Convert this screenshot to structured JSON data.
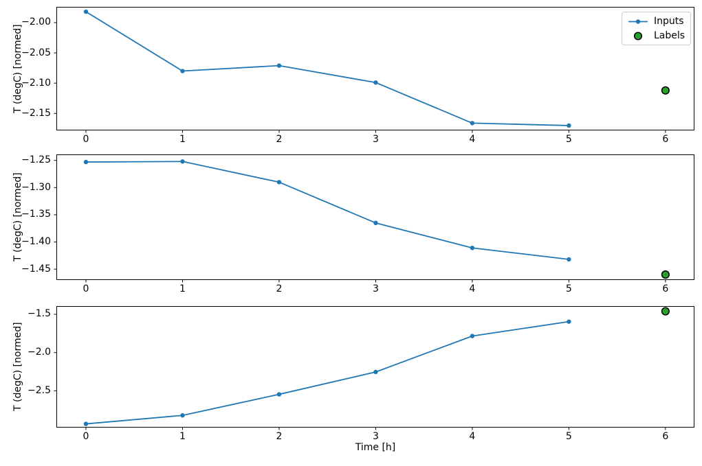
{
  "figure": {
    "xlabel": "Time [h]",
    "background_color": "#ffffff",
    "frame_color": "#000000",
    "legend": {
      "position": "upper right",
      "items": [
        {
          "label": "Inputs",
          "glyph": "line-with-dot-marker",
          "color": "#1f77b4"
        },
        {
          "label": "Labels",
          "glyph": "filled-circle",
          "color": "#2ca02c",
          "edge_color": "#000000"
        }
      ]
    }
  },
  "chart_data": [
    {
      "type": "line",
      "title": "",
      "xlabel": "",
      "ylabel": "T (degC) [normed]",
      "grid": false,
      "xlim": [
        -0.306,
        6.3
      ],
      "ylim": [
        -2.178,
        -1.974
      ],
      "xticks": {
        "values": [
          0,
          1,
          2,
          3,
          4,
          5,
          6
        ],
        "labels": [
          "0",
          "1",
          "2",
          "3",
          "4",
          "5",
          "6"
        ]
      },
      "yticks": {
        "values": [
          -2.0,
          -2.05,
          -2.1,
          -2.15
        ],
        "labels": [
          "−2.00",
          "−2.05",
          "−2.10",
          "−2.15"
        ]
      },
      "series": [
        {
          "name": "Inputs",
          "type": "line",
          "color": "#1f77b4",
          "x": [
            0,
            1,
            2,
            3,
            4,
            5
          ],
          "values": [
            -1.982,
            -2.08,
            -2.071,
            -2.099,
            -2.166,
            -2.17
          ]
        },
        {
          "name": "Labels",
          "type": "scatter",
          "color": "#2ca02c",
          "edge_color": "#000000",
          "x": [
            6
          ],
          "values": [
            -2.112
          ]
        }
      ]
    },
    {
      "type": "line",
      "title": "",
      "xlabel": "",
      "ylabel": "T (degC) [normed]",
      "grid": false,
      "xlim": [
        -0.306,
        6.3
      ],
      "ylim": [
        -1.47,
        -1.239
      ],
      "xticks": {
        "values": [
          0,
          1,
          2,
          3,
          4,
          5,
          6
        ],
        "labels": [
          "0",
          "1",
          "2",
          "3",
          "4",
          "5",
          "6"
        ]
      },
      "yticks": {
        "values": [
          -1.25,
          -1.3,
          -1.35,
          -1.4,
          -1.45
        ],
        "labels": [
          "−1.25",
          "−1.30",
          "−1.35",
          "−1.40",
          "−1.45"
        ]
      },
      "series": [
        {
          "name": "Inputs",
          "type": "line",
          "color": "#1f77b4",
          "x": [
            0,
            1,
            2,
            3,
            4,
            5
          ],
          "values": [
            -1.253,
            -1.252,
            -1.29,
            -1.365,
            -1.411,
            -1.432
          ]
        },
        {
          "name": "Labels",
          "type": "scatter",
          "color": "#2ca02c",
          "edge_color": "#000000",
          "x": [
            6
          ],
          "values": [
            -1.46
          ]
        }
      ]
    },
    {
      "type": "line",
      "title": "",
      "xlabel": "Time [h]",
      "ylabel": "T (degC) [normed]",
      "grid": false,
      "xlim": [
        -0.306,
        6.3
      ],
      "ylim": [
        -2.979,
        -1.393
      ],
      "xticks": {
        "values": [
          0,
          1,
          2,
          3,
          4,
          5,
          6
        ],
        "labels": [
          "0",
          "1",
          "2",
          "3",
          "4",
          "5",
          "6"
        ]
      },
      "yticks": {
        "values": [
          -1.5,
          -2.0,
          -2.5
        ],
        "labels": [
          "−1.5",
          "−2.0",
          "−2.5"
        ]
      },
      "series": [
        {
          "name": "Inputs",
          "type": "line",
          "color": "#1f77b4",
          "x": [
            0,
            1,
            2,
            3,
            4,
            5
          ],
          "values": [
            -2.931,
            -2.82,
            -2.545,
            -2.253,
            -1.784,
            -1.596
          ]
        },
        {
          "name": "Labels",
          "type": "scatter",
          "color": "#2ca02c",
          "edge_color": "#000000",
          "x": [
            6
          ],
          "values": [
            -1.461
          ]
        }
      ]
    }
  ]
}
